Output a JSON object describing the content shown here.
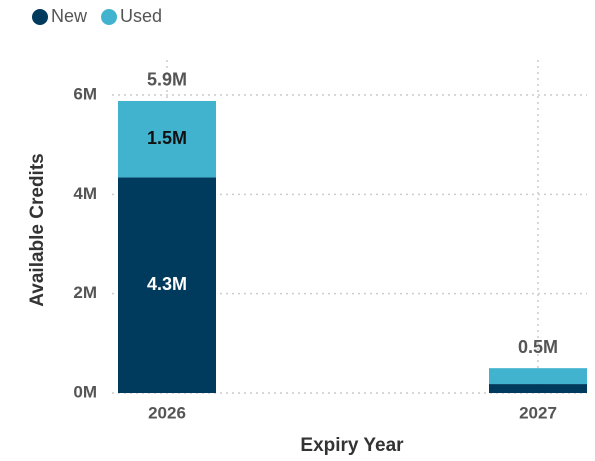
{
  "chart_data": {
    "type": "stacked-bar",
    "x_label": "Expiry Year",
    "y_label": "Available Credits",
    "categories": [
      "2026",
      "2027"
    ],
    "series": [
      {
        "name": "New",
        "color": "#003a5c",
        "values": [
          4340000,
          180000
        ],
        "value_labels": [
          "4.3M",
          null
        ]
      },
      {
        "name": "Used",
        "color": "#41b3ce",
        "values": [
          1540000,
          320000
        ],
        "value_labels": [
          "1.5M",
          null
        ]
      }
    ],
    "total_labels": [
      "5.9M",
      "0.5M"
    ],
    "ylim": [
      0,
      6000000
    ],
    "yticks": [
      {
        "value": 0,
        "label": "0M"
      },
      {
        "value": 2000000,
        "label": "2M"
      },
      {
        "value": 4000000,
        "label": "4M"
      },
      {
        "value": 6000000,
        "label": "6M"
      }
    ],
    "grid": true,
    "legend": "top-left"
  }
}
